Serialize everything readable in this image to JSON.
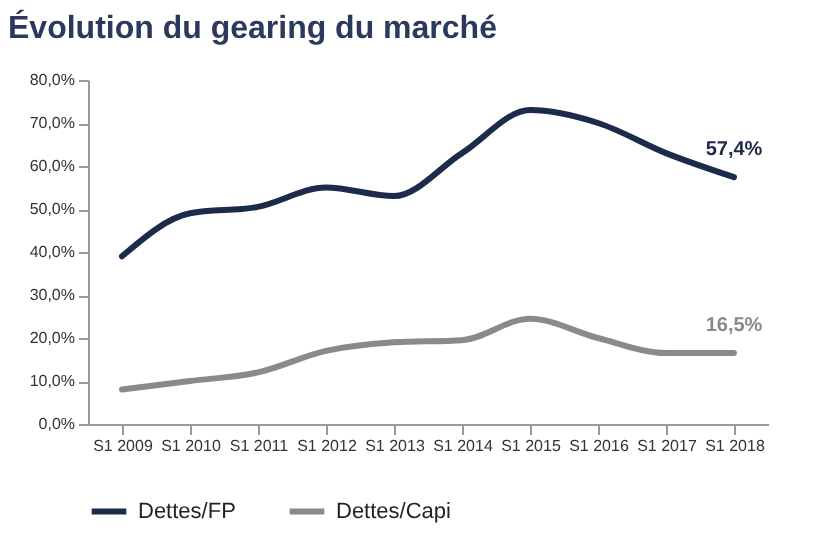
{
  "chart_data": {
    "type": "line",
    "title": "Évolution du gearing du marché",
    "categories": [
      "S1 2009",
      "S1 2010",
      "S1 2011",
      "S1 2012",
      "S1 2013",
      "S1 2014",
      "S1 2015",
      "S1 2016",
      "S1 2017",
      "S1 2018"
    ],
    "series": [
      {
        "name": "Dettes/FP",
        "color": "#1c2b4a",
        "values": [
          39,
          49,
          50.5,
          55,
          53,
          63,
          73,
          70,
          63,
          57.4
        ],
        "value_labels": [
          null,
          null,
          null,
          null,
          null,
          null,
          null,
          null,
          null,
          "57,4%"
        ]
      },
      {
        "name": "Dettes/Capi",
        "color": "#8a8a8a",
        "values": [
          8,
          10,
          12,
          17,
          19,
          19.5,
          24.5,
          20,
          16.5,
          16.5
        ],
        "value_labels": [
          null,
          null,
          null,
          null,
          null,
          null,
          null,
          null,
          null,
          "16,5%"
        ]
      }
    ],
    "ylim": [
      0,
      80
    ],
    "yticks": [
      {
        "value": 0,
        "label": "0,0%"
      },
      {
        "value": 10,
        "label": "10,0%"
      },
      {
        "value": 20,
        "label": "20,0%"
      },
      {
        "value": 30,
        "label": "30,0%"
      },
      {
        "value": 40,
        "label": "40,0%"
      },
      {
        "value": 50,
        "label": "50,0%"
      },
      {
        "value": 60,
        "label": "60,0%"
      },
      {
        "value": 70,
        "label": "70,0%"
      },
      {
        "value": 80,
        "label": "80,0%"
      }
    ],
    "grid": false,
    "legend": "bottom",
    "marker": "none",
    "line_style": "solid"
  }
}
